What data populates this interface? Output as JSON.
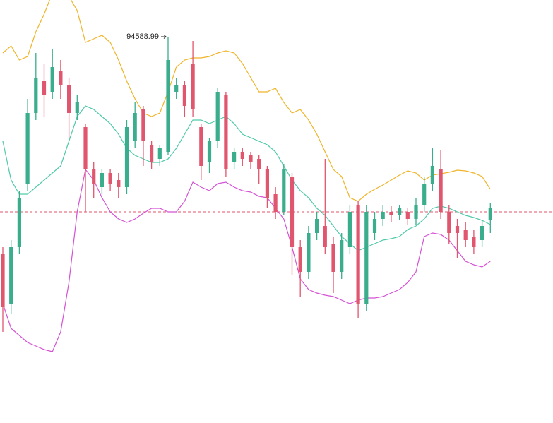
{
  "chart_data": {
    "type": "candlestick",
    "ylim": [
      83650,
      95630
    ],
    "up_color": "#3aae8c",
    "down_color": "#e0566e",
    "open": [
      88430,
      87030,
      88630,
      90430,
      92430,
      93330,
      93030,
      93630,
      93230,
      92430,
      92030,
      90830,
      90330,
      90730,
      90530,
      90330,
      91630,
      92530,
      91530,
      91130,
      91330,
      93030,
      93230,
      93830,
      92030,
      91030,
      91630,
      92930,
      91030,
      91330,
      91230,
      91130,
      90830,
      90130,
      89630,
      90630,
      88630,
      87930,
      89030,
      89230,
      88730,
      87930,
      88630,
      89830,
      87030,
      89030,
      89430,
      89630,
      89530,
      89630,
      89430,
      89830,
      90430,
      90830,
      89630,
      89230,
      89130,
      88930,
      88830,
      89390
    ],
    "close": [
      86930,
      88630,
      90030,
      92430,
      93430,
      92930,
      93730,
      93230,
      92430,
      92730,
      90830,
      90430,
      90730,
      90430,
      90330,
      92030,
      92430,
      91630,
      91030,
      91430,
      93930,
      93230,
      92630,
      92530,
      90930,
      91630,
      93030,
      90830,
      91330,
      91130,
      91030,
      90830,
      90030,
      89630,
      90830,
      88630,
      87930,
      89030,
      89430,
      88630,
      87930,
      88830,
      89630,
      87030,
      89630,
      89430,
      89630,
      89530,
      89730,
      89430,
      89830,
      90430,
      90930,
      89630,
      89030,
      89030,
      88830,
      88630,
      89230,
      89730
    ],
    "high": [
      88630,
      88830,
      90230,
      92830,
      94130,
      93830,
      94230,
      93930,
      93430,
      92930,
      92130,
      91030,
      90830,
      90830,
      90730,
      92230,
      92730,
      92630,
      91630,
      91530,
      94588.99,
      93430,
      93330,
      94470,
      92130,
      91730,
      93130,
      93030,
      91430,
      91430,
      91330,
      91230,
      90930,
      90330,
      90990,
      90730,
      88830,
      89230,
      89630,
      91130,
      88930,
      89030,
      89830,
      89930,
      89830,
      89630,
      89830,
      89790,
      89830,
      89730,
      90030,
      90630,
      91430,
      91390,
      89830,
      89430,
      89330,
      89130,
      89390,
      89870
    ],
    "low": [
      86230,
      86730,
      88430,
      90230,
      92230,
      92330,
      92830,
      92830,
      91730,
      92230,
      89630,
      90030,
      90130,
      90230,
      90030,
      90130,
      91430,
      90930,
      90830,
      90930,
      91230,
      92830,
      92330,
      92330,
      90530,
      90730,
      91430,
      90630,
      90830,
      90930,
      90830,
      90430,
      89730,
      89430,
      89530,
      87830,
      87230,
      87730,
      88830,
      88430,
      87330,
      87730,
      88430,
      86630,
      86830,
      88830,
      89230,
      89330,
      89390,
      89270,
      89270,
      89630,
      90230,
      89430,
      88730,
      88330,
      88630,
      88430,
      88630,
      89030
    ],
    "lines": [
      {
        "color": "#f0b429",
        "values": [
          94130,
          94330,
          93930,
          94030,
          94730,
          95230,
          95830,
          95830,
          95730,
          95330,
          94430,
          94530,
          94630,
          94430,
          93930,
          93330,
          92830,
          92430,
          92330,
          92430,
          93030,
          93730,
          93930,
          93990,
          93990,
          94030,
          94130,
          94190,
          94130,
          93830,
          93430,
          93030,
          93030,
          93130,
          92730,
          92430,
          92530,
          92230,
          91830,
          91330,
          90830,
          90630,
          90030,
          89930,
          90130,
          90270,
          90390,
          90530,
          90670,
          90790,
          90730,
          90530,
          90670,
          90710,
          90750,
          90810,
          90790,
          90730,
          90630,
          90270
        ]
      },
      {
        "color": "#4fc9a9",
        "values": [
          91630,
          90530,
          90130,
          90130,
          90330,
          90530,
          90730,
          90930,
          91630,
          92330,
          92630,
          92530,
          92330,
          92130,
          91830,
          91430,
          91230,
          91130,
          91030,
          91030,
          91130,
          91430,
          91830,
          92230,
          92230,
          92130,
          92230,
          92330,
          92130,
          91830,
          91730,
          91630,
          91530,
          91330,
          90930,
          90530,
          90230,
          90030,
          89730,
          89530,
          89230,
          88930,
          88730,
          88530,
          88630,
          88730,
          88830,
          88870,
          88930,
          89130,
          89230,
          89430,
          89730,
          89790,
          89730,
          89630,
          89530,
          89470,
          89390,
          89270
        ]
      },
      {
        "color": "#d452d4",
        "values": [
          87030,
          86330,
          86130,
          85930,
          85830,
          85730,
          85670,
          86230,
          87630,
          89630,
          90830,
          90530,
          90030,
          89630,
          89430,
          89330,
          89430,
          89590,
          89730,
          89730,
          89630,
          89630,
          89930,
          90470,
          90330,
          90230,
          90430,
          90470,
          90330,
          90230,
          90190,
          90070,
          90030,
          89730,
          89430,
          88630,
          87730,
          87430,
          87330,
          87270,
          87230,
          87130,
          87030,
          87130,
          87190,
          87190,
          87230,
          87330,
          87430,
          87630,
          87930,
          88930,
          89030,
          88990,
          88830,
          88530,
          88230,
          88130,
          88070,
          88230
        ]
      }
    ],
    "price_line": {
      "value": 89630,
      "color": "#e0566e"
    }
  }
}
